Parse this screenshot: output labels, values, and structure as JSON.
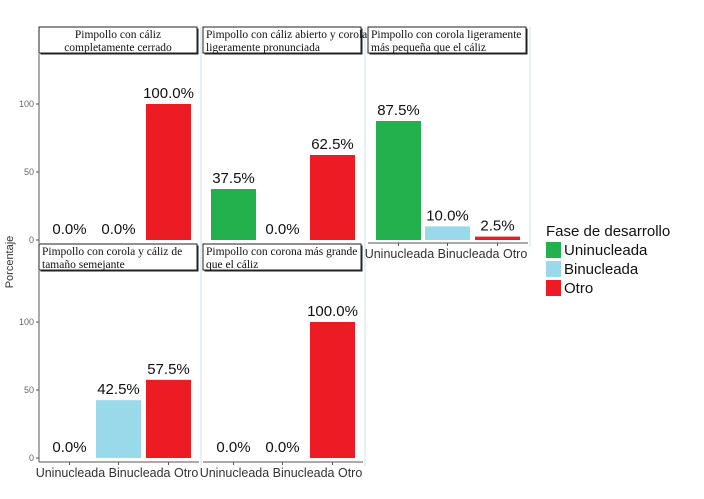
{
  "chart_data": {
    "type": "bar",
    "ylabel": "Porcentaje",
    "ylim": [
      0,
      135
    ],
    "yticks": [
      0,
      50,
      100
    ],
    "categories": [
      "Uninucleada",
      "Binucleada",
      "Otro"
    ],
    "legend": {
      "title": "Fase de desarrollo",
      "position": "right",
      "entries": [
        {
          "name": "Uninucleada",
          "color": "#22b14c"
        },
        {
          "name": "Binucleada",
          "color": "#99d9ea"
        },
        {
          "name": "Otro",
          "color": "#ed1c24"
        }
      ]
    },
    "panels": [
      {
        "title_lines": [
          "Pimpollo con cáliz",
          "completamente cerrado"
        ],
        "title_align": "center",
        "values": [
          0,
          0,
          100
        ],
        "labels": [
          "0.0%",
          "0.0%",
          "100.0%"
        ]
      },
      {
        "title_lines": [
          "Pimpollo con cáliz abierto y corola",
          "ligeramente pronunciada"
        ],
        "title_align": "left",
        "values": [
          37.5,
          0,
          62.5
        ],
        "labels": [
          "37.5%",
          "0.0%",
          "62.5%"
        ]
      },
      {
        "title_lines": [
          "Pimpollo con corola ligeramente",
          "más pequeña que el cáliz"
        ],
        "title_align": "left",
        "values": [
          87.5,
          10,
          2.5
        ],
        "labels": [
          "87.5%",
          "10.0%",
          "2.5%"
        ]
      },
      {
        "title_lines": [
          "Pimpollo con corola y cáliz de",
          "tamaño semejante"
        ],
        "title_align": "left",
        "values": [
          0,
          42.5,
          57.5
        ],
        "labels": [
          "0.0%",
          "42.5%",
          "57.5%"
        ]
      },
      {
        "title_lines": [
          "Pimpollo con corona más grande",
          "que el cáliz"
        ],
        "title_align": "left",
        "values": [
          0,
          0,
          100
        ],
        "labels": [
          "0.0%",
          "0.0%",
          "100.0%"
        ]
      }
    ]
  }
}
